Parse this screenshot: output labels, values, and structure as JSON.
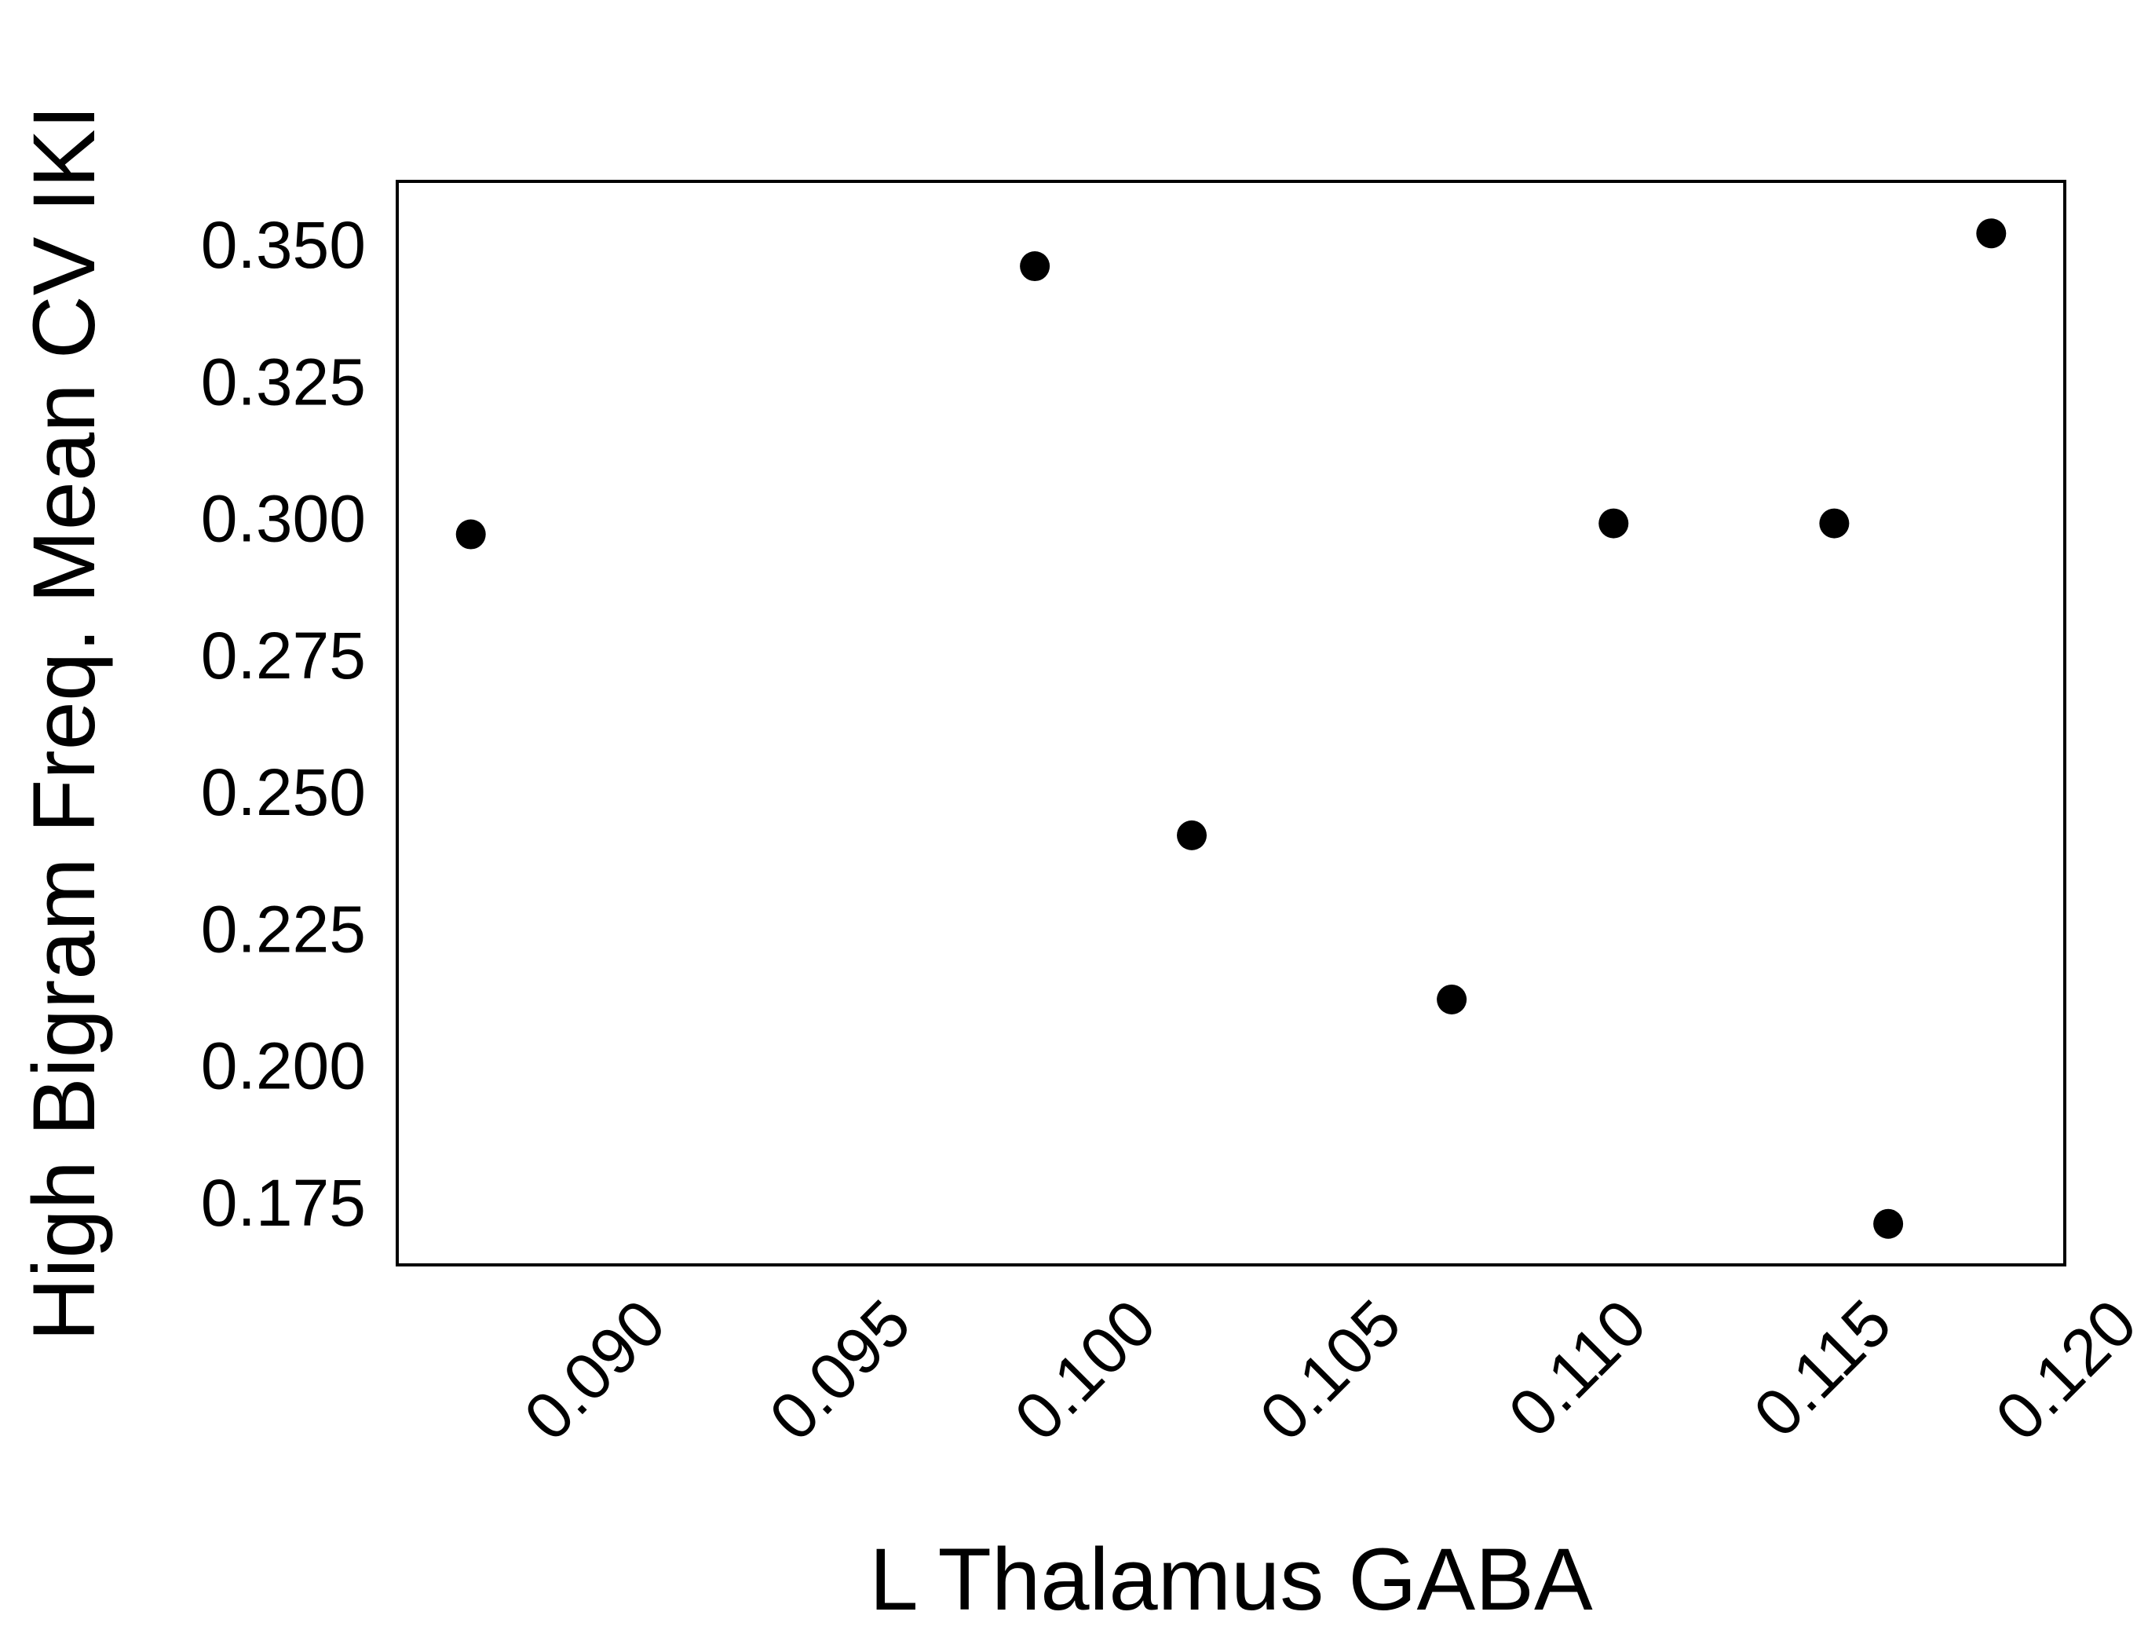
{
  "chart_data": {
    "type": "scatter",
    "title": "",
    "xlabel": "L Thalamus GABA",
    "ylabel": "High Bigram Freq. Mean CV IKI",
    "xlim": [
      0.0855,
      0.1195
    ],
    "ylim": [
      0.1635,
      0.3615
    ],
    "x_ticks": [
      0.09,
      0.095,
      0.1,
      0.105,
      0.11,
      0.115,
      0.12
    ],
    "x_tick_labels": [
      "0.090",
      "0.095",
      "0.100",
      "0.105",
      "0.110",
      "0.115",
      "0.120"
    ],
    "y_ticks": [
      0.175,
      0.2,
      0.225,
      0.25,
      0.275,
      0.3,
      0.325,
      0.35
    ],
    "y_tick_labels": [
      "0.175",
      "0.200",
      "0.225",
      "0.250",
      "0.275",
      "0.300",
      "0.325",
      "0.350"
    ],
    "x_tick_rotation_deg": 45,
    "grid": false,
    "legend": false,
    "marker_color": "#000000",
    "frame_color": "#000000",
    "points": [
      {
        "x": 0.087,
        "y": 0.297
      },
      {
        "x": 0.0985,
        "y": 0.346
      },
      {
        "x": 0.1017,
        "y": 0.242
      },
      {
        "x": 0.107,
        "y": 0.212
      },
      {
        "x": 0.1103,
        "y": 0.299
      },
      {
        "x": 0.1148,
        "y": 0.299
      },
      {
        "x": 0.1159,
        "y": 0.171
      },
      {
        "x": 0.118,
        "y": 0.352
      }
    ]
  }
}
